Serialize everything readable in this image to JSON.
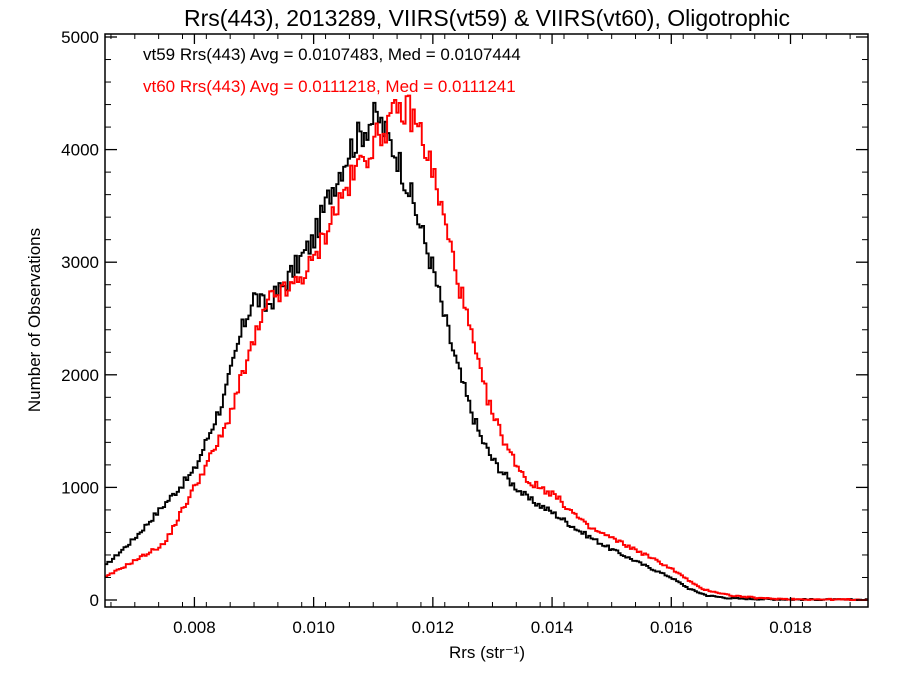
{
  "chart_data": {
    "type": "line",
    "title": "Rrs(443), 2013289, VIIRS(vt59) & VIIRS(vt60), Oligotrophic",
    "xlabel": "Rrs (str⁻¹)",
    "ylabel": "Number of Observations",
    "xlim": [
      0.0065,
      0.0193
    ],
    "ylim": [
      0,
      5000
    ],
    "x_ticks": [
      0.008,
      0.01,
      0.012,
      0.014,
      0.016,
      0.018
    ],
    "x_tick_labels": [
      "0.008",
      "0.010",
      "0.012",
      "0.014",
      "0.016",
      "0.018"
    ],
    "y_ticks": [
      0,
      1000,
      2000,
      3000,
      4000,
      5000
    ],
    "y_tick_labels": [
      "0",
      "1000",
      "2000",
      "3000",
      "4000",
      "5000"
    ],
    "annotations": [
      "vt59 Rrs(443) Avg = 0.0107483, Med = 0.0107444",
      "vt60 Rrs(443) Avg = 0.0111218, Med = 0.0111241"
    ],
    "grid": false,
    "step_style": "histogram",
    "series": [
      {
        "color": "#000000",
        "x": [
          0.0065,
          0.007,
          0.0075,
          0.008,
          0.0085,
          0.0088,
          0.009,
          0.0092,
          0.0095,
          0.01,
          0.0103,
          0.0106,
          0.0108,
          0.011,
          0.0111,
          0.0112,
          0.0114,
          0.0116,
          0.0118,
          0.012,
          0.0122,
          0.0124,
          0.0126,
          0.0128,
          0.013,
          0.0133,
          0.0136,
          0.014,
          0.0145,
          0.015,
          0.0155,
          0.016,
          0.0163,
          0.0166,
          0.017,
          0.0175,
          0.018,
          0.0185,
          0.0193
        ],
        "y": [
          300,
          550,
          850,
          1150,
          1800,
          2400,
          2700,
          2600,
          2800,
          3200,
          3650,
          4000,
          4150,
          4280,
          4270,
          4150,
          3950,
          3650,
          3300,
          2950,
          2500,
          2100,
          1750,
          1450,
          1250,
          1050,
          900,
          780,
          600,
          450,
          320,
          200,
          100,
          40,
          15,
          8,
          5,
          3,
          2
        ]
      },
      {
        "color": "#ff0000",
        "x": [
          0.0065,
          0.007,
          0.0075,
          0.008,
          0.0085,
          0.009,
          0.0093,
          0.0096,
          0.01,
          0.0103,
          0.0106,
          0.0108,
          0.011,
          0.0112,
          0.0114,
          0.0116,
          0.0118,
          0.012,
          0.0122,
          0.0124,
          0.0126,
          0.0128,
          0.013,
          0.0133,
          0.0136,
          0.014,
          0.0143,
          0.0146,
          0.015,
          0.0155,
          0.016,
          0.0165,
          0.017,
          0.0175,
          0.018,
          0.0185,
          0.0193
        ],
        "y": [
          200,
          350,
          500,
          1000,
          1500,
          2300,
          2700,
          2750,
          3000,
          3400,
          3700,
          3900,
          4050,
          4200,
          4320,
          4350,
          4150,
          3800,
          3350,
          2900,
          2450,
          2000,
          1650,
          1300,
          1050,
          950,
          800,
          650,
          550,
          420,
          280,
          100,
          40,
          15,
          8,
          5,
          2
        ]
      }
    ]
  }
}
